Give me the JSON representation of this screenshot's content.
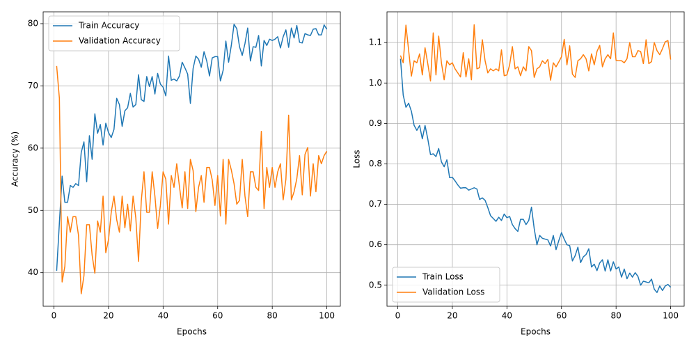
{
  "chart_data": [
    {
      "type": "line",
      "xlabel": "Epochs",
      "ylabel": "Accuracy (%)",
      "grid": true,
      "legend": "upper left",
      "xlim": [
        -3.95,
        104.95
      ],
      "xticks": [
        0,
        20,
        40,
        60,
        80,
        100
      ],
      "ylim": [
        34.6,
        81.9
      ],
      "yticks": [
        40,
        50,
        60,
        70,
        80
      ],
      "x": [
        1,
        2,
        3,
        4,
        5,
        6,
        7,
        8,
        9,
        10,
        11,
        12,
        13,
        14,
        15,
        16,
        17,
        18,
        19,
        20,
        21,
        22,
        23,
        24,
        25,
        26,
        27,
        28,
        29,
        30,
        31,
        32,
        33,
        34,
        35,
        36,
        37,
        38,
        39,
        40,
        41,
        42,
        43,
        44,
        45,
        46,
        47,
        48,
        49,
        50,
        51,
        52,
        53,
        54,
        55,
        56,
        57,
        58,
        59,
        60,
        61,
        62,
        63,
        64,
        65,
        66,
        67,
        68,
        69,
        70,
        71,
        72,
        73,
        74,
        75,
        76,
        77,
        78,
        79,
        80,
        81,
        82,
        83,
        84,
        85,
        86,
        87,
        88,
        89,
        90,
        91,
        92,
        93,
        94,
        95,
        96,
        97,
        98,
        99,
        100
      ],
      "series": [
        {
          "name": "Train Accuracy",
          "color": "#1f77b4",
          "values": [
            40.3,
            48,
            55.5,
            51.3,
            51.3,
            54,
            53.7,
            54.3,
            54,
            59.3,
            61,
            54.6,
            62,
            58.2,
            65.5,
            62.4,
            63.8,
            60.5,
            64,
            62.5,
            61.7,
            63,
            68,
            67,
            63.5,
            66,
            66.5,
            68.8,
            66.6,
            67,
            71.8,
            67.8,
            67.5,
            71.5,
            69.9,
            71.5,
            68.7,
            72,
            70.3,
            69.8,
            68.4,
            74.8,
            70.9,
            71.1,
            70.8,
            71.6,
            73.8,
            72.9,
            71.9,
            67.2,
            72.8,
            74.8,
            74.3,
            73,
            75.5,
            74,
            71.6,
            74.5,
            74.7,
            74.7,
            70.8,
            72.5,
            77.2,
            73.8,
            76.5,
            79.9,
            79.2,
            76.3,
            74.9,
            76.8,
            79.3,
            74,
            76.3,
            76.2,
            78.1,
            73.2,
            77.3,
            76.5,
            77.5,
            77.3,
            77.5,
            77.9,
            76.1,
            77.9,
            79,
            76.2,
            79.3,
            77.7,
            79.7,
            77,
            76.9,
            78.4,
            78.2,
            78.1,
            79.1,
            79.2,
            78.2,
            78.2,
            79.8,
            79.1
          ]
        },
        {
          "name": "Validation Accuracy",
          "color": "#ff7f0e",
          "values": [
            73.2,
            68,
            38.5,
            41,
            49,
            46.5,
            49,
            49,
            46,
            36.6,
            39.5,
            47.7,
            47.7,
            42.8,
            39.9,
            48.3,
            46.5,
            52.3,
            43.2,
            45.3,
            49.7,
            52.3,
            48.5,
            46.5,
            52.3,
            47.2,
            51,
            46.7,
            52.3,
            48.8,
            41.8,
            51.5,
            56.2,
            49.7,
            49.7,
            56.2,
            52.3,
            47.1,
            50.8,
            56.2,
            55,
            47.8,
            55.6,
            53.7,
            57.5,
            53.8,
            50.4,
            56.2,
            50.3,
            58.2,
            56.4,
            49.8,
            53.7,
            55.6,
            51.3,
            56.9,
            56.9,
            54.9,
            50.8,
            55.6,
            49.1,
            58.2,
            47.8,
            58.2,
            56.5,
            54.3,
            51,
            51.6,
            58.2,
            52.3,
            49,
            56.2,
            56.2,
            53.7,
            53.2,
            62.7,
            50.3,
            56.9,
            53.7,
            56.9,
            53.7,
            56.2,
            57.5,
            51.7,
            55,
            65.3,
            51.7,
            53,
            55.1,
            58.8,
            52.5,
            59,
            60.1,
            52.3,
            57.5,
            53,
            58.8,
            57.5,
            58.8,
            59.5
          ]
        }
      ]
    },
    {
      "type": "line",
      "xlabel": "Epochs",
      "ylabel": "Loss",
      "grid": true,
      "legend": "lower left",
      "xlim": [
        -3.95,
        104.95
      ],
      "xticks": [
        0,
        20,
        40,
        60,
        80,
        100
      ],
      "ylim": [
        0.448,
        1.176
      ],
      "yticks": [
        0.5,
        0.6,
        0.7,
        0.8,
        0.9,
        {
          "value": 1,
          "label": "1.0"
        },
        1.1
      ],
      "x": [
        1,
        2,
        3,
        4,
        5,
        6,
        7,
        8,
        9,
        10,
        11,
        12,
        13,
        14,
        15,
        16,
        17,
        18,
        19,
        20,
        21,
        22,
        23,
        24,
        25,
        26,
        27,
        28,
        29,
        30,
        31,
        32,
        33,
        34,
        35,
        36,
        37,
        38,
        39,
        40,
        41,
        42,
        43,
        44,
        45,
        46,
        47,
        48,
        49,
        50,
        51,
        52,
        53,
        54,
        55,
        56,
        57,
        58,
        59,
        60,
        61,
        62,
        63,
        64,
        65,
        66,
        67,
        68,
        69,
        70,
        71,
        72,
        73,
        74,
        75,
        76,
        77,
        78,
        79,
        80,
        81,
        82,
        83,
        84,
        85,
        86,
        87,
        88,
        89,
        90,
        91,
        92,
        93,
        94,
        95,
        96,
        97,
        98,
        99,
        100
      ],
      "series": [
        {
          "name": "Train Loss",
          "color": "#1f77b4",
          "values": [
            1.06,
            0.97,
            0.94,
            0.95,
            0.93,
            0.895,
            0.883,
            0.895,
            0.862,
            0.895,
            0.862,
            0.823,
            0.825,
            0.818,
            0.838,
            0.805,
            0.793,
            0.81,
            0.766,
            0.767,
            0.758,
            0.748,
            0.74,
            0.741,
            0.741,
            0.735,
            0.738,
            0.741,
            0.738,
            0.712,
            0.716,
            0.71,
            0.692,
            0.672,
            0.665,
            0.658,
            0.668,
            0.66,
            0.676,
            0.667,
            0.67,
            0.65,
            0.64,
            0.633,
            0.663,
            0.663,
            0.65,
            0.66,
            0.693,
            0.64,
            0.6,
            0.623,
            0.616,
            0.614,
            0.612,
            0.597,
            0.623,
            0.588,
            0.61,
            0.63,
            0.614,
            0.6,
            0.598,
            0.56,
            0.573,
            0.594,
            0.556,
            0.57,
            0.576,
            0.59,
            0.545,
            0.552,
            0.536,
            0.555,
            0.563,
            0.535,
            0.563,
            0.535,
            0.558,
            0.54,
            0.545,
            0.52,
            0.54,
            0.516,
            0.53,
            0.52,
            0.531,
            0.522,
            0.5,
            0.51,
            0.508,
            0.506,
            0.515,
            0.49,
            0.482,
            0.498,
            0.487,
            0.498,
            0.502,
            0.495
          ]
        },
        {
          "name": "Validation Loss",
          "color": "#ff7f0e",
          "values": [
            1.068,
            1.05,
            1.143,
            1.08,
            1.017,
            1.055,
            1.05,
            1.072,
            1.02,
            1.087,
            1.048,
            1.005,
            1.124,
            1.02,
            1.116,
            1.05,
            1.008,
            1.055,
            1.045,
            1.05,
            1.035,
            1.025,
            1.015,
            1.075,
            1.015,
            1.06,
            1.008,
            1.144,
            1.035,
            1.038,
            1.107,
            1.055,
            1.025,
            1.035,
            1.03,
            1.035,
            1.03,
            1.082,
            1.018,
            1.02,
            1.045,
            1.09,
            1.035,
            1.04,
            1.018,
            1.04,
            1.03,
            1.09,
            1.08,
            1.014,
            1.035,
            1.04,
            1.055,
            1.048,
            1.058,
            1.007,
            1.05,
            1.04,
            1.052,
            1.065,
            1.108,
            1.045,
            1.092,
            1.022,
            1.014,
            1.055,
            1.06,
            1.07,
            1.06,
            1.03,
            1.072,
            1.045,
            1.078,
            1.093,
            1.04,
            1.06,
            1.07,
            1.06,
            1.124,
            1.056,
            1.055,
            1.055,
            1.05,
            1.06,
            1.1,
            1.065,
            1.065,
            1.08,
            1.078,
            1.048,
            1.107,
            1.048,
            1.053,
            1.1,
            1.08,
            1.07,
            1.085,
            1.102,
            1.105,
            1.058
          ]
        }
      ]
    }
  ]
}
